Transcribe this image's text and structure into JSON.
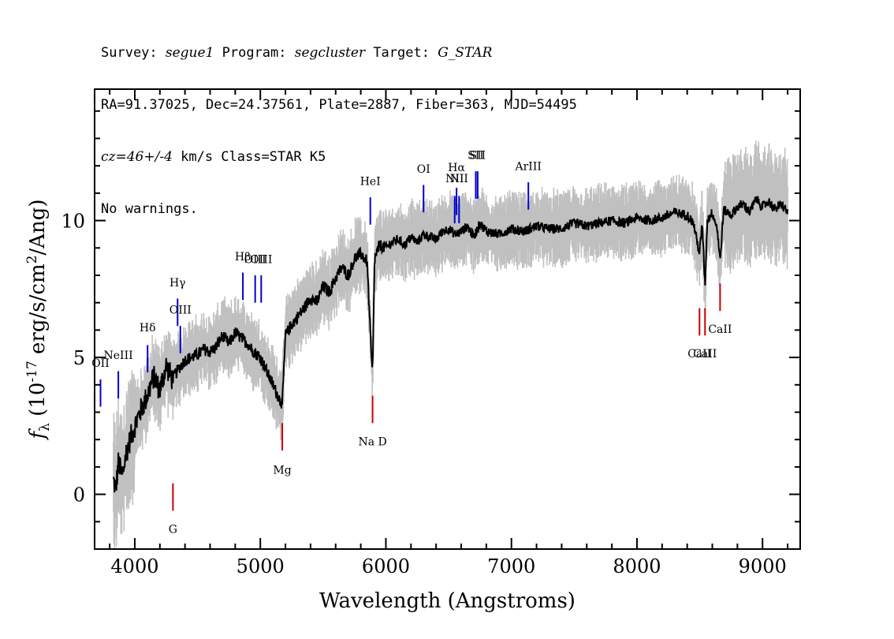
{
  "header": {
    "line1": {
      "survey_label": "Survey: ",
      "survey": "segue1",
      "program_label": " Program: ",
      "program": "segcluster",
      "target_label": " Target: ",
      "target": "G_STAR"
    },
    "line2": "RA=91.37025, Dec=24.37561, Plate=2887, Fiber=363, MJD=54495",
    "line3": {
      "cz": "cz=46+/-4",
      "rest": " km/s Class=STAR K5"
    },
    "line4": "No warnings."
  },
  "colors": {
    "flux": "#000000",
    "error": "#c0c0c0",
    "emission_line": "#0000cc",
    "absorption_line": "#cc0000",
    "axis": "#000000"
  },
  "chart_data": {
    "type": "line",
    "xlabel": "Wavelength (Angstroms)",
    "ylabel_prefix": "f",
    "ylabel_sub": "λ",
    "ylabel_main": " (10",
    "ylabel_exp": "-17",
    "ylabel_units": " erg/s/cm",
    "ylabel_exp2": "2",
    "ylabel_end": "/Ang)",
    "xlim": [
      3680,
      9300
    ],
    "ylim": [
      -2,
      14.8
    ],
    "x_ticks": [
      4000,
      5000,
      6000,
      7000,
      8000,
      9000
    ],
    "x_tick_labels": [
      "4000",
      "5000",
      "6000",
      "7000",
      "8000",
      "9000"
    ],
    "y_ticks": [
      0,
      5,
      10
    ],
    "y_tick_labels": [
      "0",
      "5",
      "10"
    ],
    "series": [
      {
        "role": "flux",
        "x": [
          3830,
          3850,
          3870,
          3900,
          3930,
          3970,
          4000,
          4050,
          4100,
          4150,
          4200,
          4250,
          4300,
          4350,
          4400,
          4450,
          4500,
          4550,
          4600,
          4650,
          4700,
          4750,
          4800,
          4850,
          4900,
          4950,
          5000,
          5050,
          5100,
          5150,
          5175,
          5200,
          5250,
          5300,
          5350,
          5400,
          5450,
          5500,
          5550,
          5600,
          5650,
          5700,
          5750,
          5800,
          5850,
          5875,
          5890,
          5896,
          5910,
          5950,
          6000,
          6050,
          6100,
          6150,
          6200,
          6250,
          6300,
          6350,
          6400,
          6450,
          6500,
          6550,
          6600,
          6650,
          6700,
          6750,
          6800,
          6900,
          7000,
          7100,
          7200,
          7300,
          7400,
          7500,
          7600,
          7700,
          7800,
          7900,
          8000,
          8100,
          8200,
          8300,
          8400,
          8450,
          8498,
          8520,
          8542,
          8560,
          8600,
          8640,
          8662,
          8690,
          8750,
          8800,
          8850,
          8900,
          8950,
          9000,
          9050,
          9100,
          9150,
          9200
        ],
        "y": [
          0.5,
          0.2,
          1.2,
          0.6,
          1.5,
          2.1,
          2.5,
          3.1,
          3.6,
          4.3,
          3.8,
          4.7,
          4.2,
          4.6,
          4.9,
          5.0,
          5.1,
          5.3,
          5.2,
          5.4,
          5.8,
          5.5,
          5.9,
          5.7,
          5.5,
          5.2,
          5.0,
          4.5,
          4.0,
          3.5,
          3.3,
          5.8,
          6.2,
          6.5,
          6.8,
          7.2,
          7.0,
          7.6,
          7.4,
          7.9,
          8.3,
          8.0,
          8.6,
          8.8,
          8.5,
          6.0,
          4.5,
          4.8,
          8.6,
          9.1,
          9.0,
          9.2,
          9.3,
          9.1,
          9.4,
          9.2,
          9.5,
          9.4,
          9.3,
          9.6,
          9.7,
          9.5,
          9.6,
          9.8,
          9.4,
          9.9,
          9.6,
          9.5,
          9.7,
          9.6,
          9.8,
          9.7,
          9.7,
          9.9,
          9.8,
          9.9,
          10.0,
          9.9,
          10.1,
          10.0,
          10.1,
          10.3,
          10.2,
          9.9,
          8.8,
          9.9,
          7.6,
          10.0,
          10.3,
          9.7,
          8.5,
          10.4,
          10.2,
          10.5,
          10.6,
          10.3,
          10.8,
          10.5,
          10.7,
          10.4,
          10.6,
          10.3
        ]
      }
    ],
    "lines": [
      {
        "label": "OII",
        "wave": 3727,
        "y": 4.2,
        "color": "emission",
        "label_y": 4.65
      },
      {
        "label": "NeIII",
        "wave": 3869,
        "y": 4.5,
        "color": "emission",
        "label_y": 4.95
      },
      {
        "label": "Hδ",
        "wave": 4102,
        "y": 5.45,
        "color": "emission",
        "label_y": 5.95
      },
      {
        "label": "Hγ",
        "wave": 4341,
        "y": 7.15,
        "color": "emission",
        "label_y": 7.6
      },
      {
        "label": "OIII",
        "wave": 4363,
        "y": 6.15,
        "color": "emission",
        "label_y": 6.6
      },
      {
        "label": "Hβ",
        "wave": 4861,
        "y": 8.1,
        "color": "emission",
        "label_y": 8.55
      },
      {
        "label": "OIII",
        "wave": 4959,
        "y": 8.0,
        "color": "emission",
        "label_y": 8.45
      },
      {
        "label": "OIII",
        "wave": 5007,
        "y": 8.0,
        "color": "emission",
        "label_y": 8.45
      },
      {
        "label": "HeI",
        "wave": 5876,
        "y": 10.85,
        "color": "emission",
        "label_y": 11.3
      },
      {
        "label": "OI",
        "wave": 6300,
        "y": 11.3,
        "color": "emission",
        "label_y": 11.75
      },
      {
        "label": "NII",
        "wave": 6548,
        "y": 10.9,
        "color": "emission",
        "label_y": 11.4
      },
      {
        "label": "Hα",
        "wave": 6563,
        "y": 11.2,
        "color": "emission",
        "label_y": 11.8
      },
      {
        "label": "NII",
        "wave": 6583,
        "y": 10.9,
        "color": "emission",
        "label_y": 11.4
      },
      {
        "label": "SII",
        "wave": 6716,
        "y": 11.8,
        "color": "emission",
        "label_y": 12.25
      },
      {
        "label": "SII",
        "wave": 6731,
        "y": 11.8,
        "color": "emission",
        "label_y": 12.25
      },
      {
        "label": "ArIII",
        "wave": 7135,
        "y": 11.4,
        "color": "emission",
        "label_y": 11.85
      },
      {
        "label": "G",
        "wave": 4304,
        "y": -0.6,
        "color": "absorption",
        "label_y": -1.0
      },
      {
        "label": "Mg",
        "wave": 5175,
        "y": 1.6,
        "color": "absorption",
        "label_y": 1.15
      },
      {
        "label": "Na D",
        "wave": 5894,
        "y": 2.6,
        "color": "absorption",
        "label_y": 2.2
      },
      {
        "label": "CaII",
        "wave": 8498,
        "y": 5.8,
        "color": "absorption",
        "label_y": 5.4
      },
      {
        "label": "CaII",
        "wave": 8542,
        "y": 5.8,
        "color": "absorption",
        "label_y": 5.4
      },
      {
        "label": "CaII",
        "wave": 8662,
        "y": 6.7,
        "color": "absorption",
        "label_y": 6.3
      }
    ]
  }
}
